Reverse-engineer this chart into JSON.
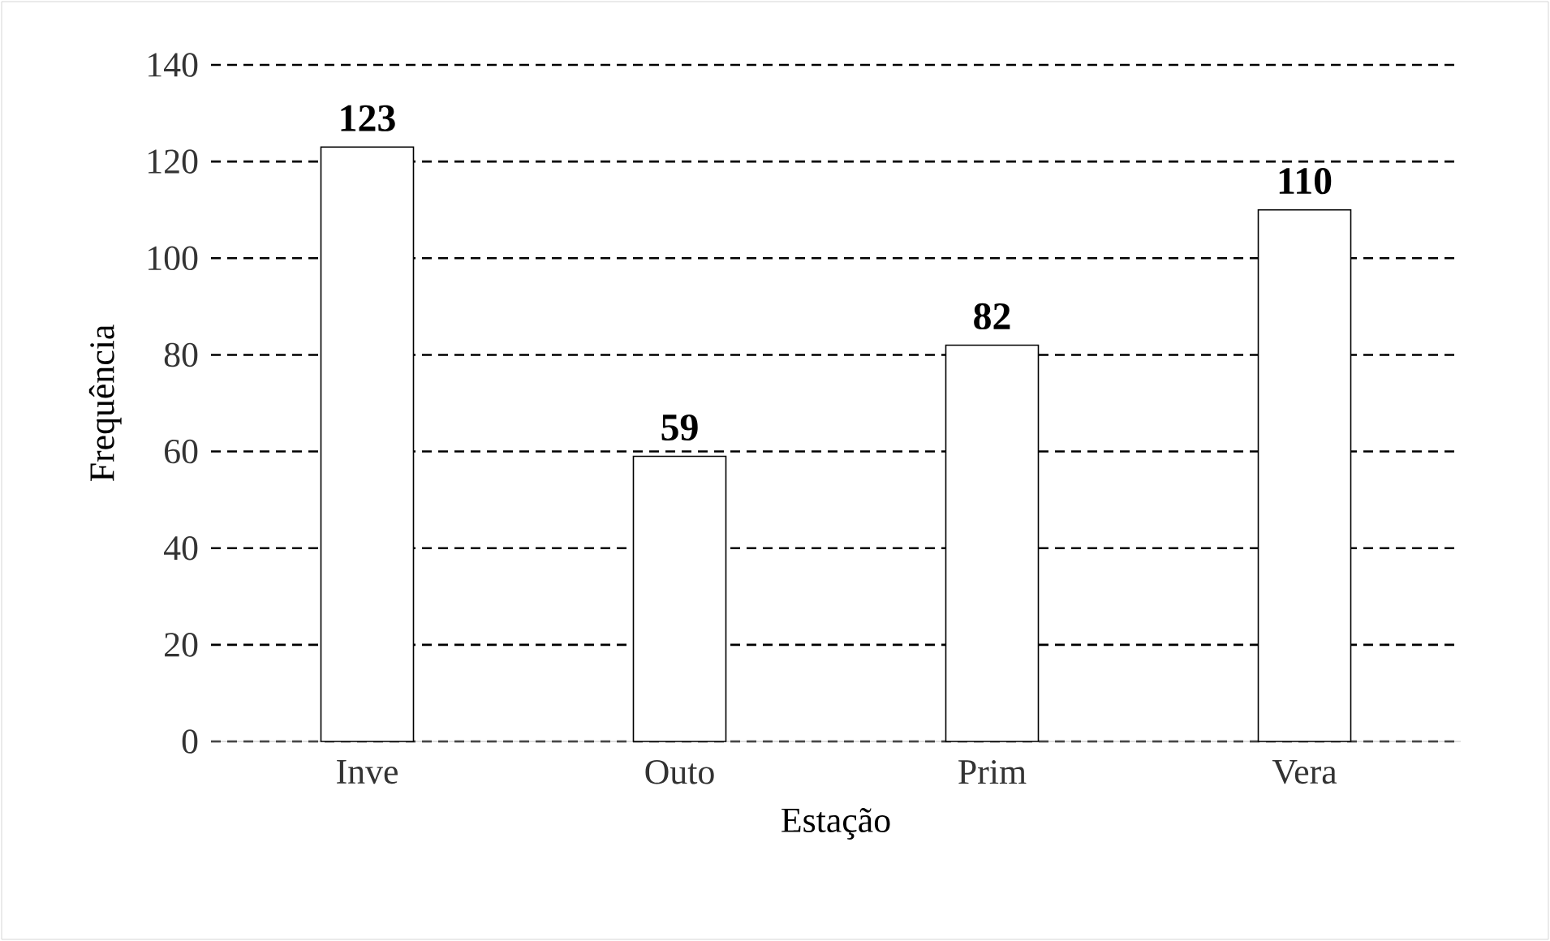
{
  "chart_data": {
    "type": "bar",
    "xlabel": "Estação",
    "ylabel": "Frequência",
    "categories": [
      "Inve",
      "Outo",
      "Prim",
      "Vera"
    ],
    "values": [
      123,
      59,
      82,
      110
    ],
    "color": "#000000",
    "ylim": [
      0,
      140
    ],
    "yticks": [
      0,
      20,
      40,
      60,
      80,
      100,
      120,
      140
    ],
    "grid": "y",
    "data_labels": true
  }
}
